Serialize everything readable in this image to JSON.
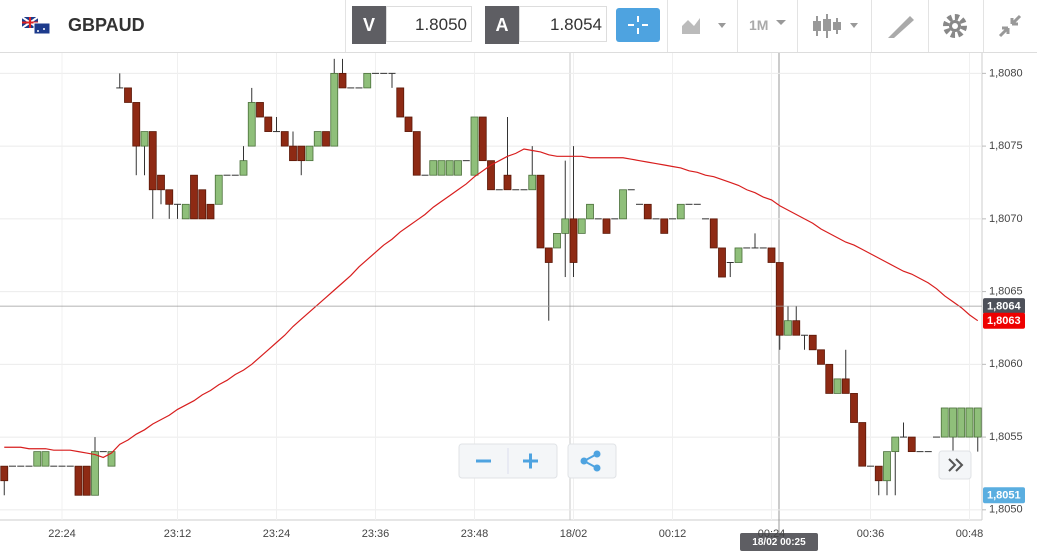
{
  "toolbar": {
    "symbol": "GBPAUD",
    "sell_label": "V",
    "sell_price": "1.8050",
    "buy_label": "A",
    "buy_price": "1.8054",
    "timeframe": "1M"
  },
  "chart_data": {
    "type": "candlestick",
    "categories": [
      null,
      null,
      null,
      null,
      null,
      null,
      null,
      "22:24",
      null,
      null,
      null,
      null,
      null,
      null,
      null,
      null,
      null,
      null,
      null,
      null,
      null,
      "23:12",
      null,
      null,
      null,
      null,
      null,
      null,
      null,
      null,
      null,
      null,
      null,
      "23:24",
      null,
      null,
      null,
      null,
      null,
      null,
      null,
      null,
      null,
      null,
      null,
      "23:36",
      null,
      null,
      null,
      null,
      null,
      null,
      null,
      null,
      null,
      null,
      null,
      "23:48",
      null,
      null,
      null,
      null,
      null,
      null,
      null,
      null,
      null,
      null,
      null,
      "18/02",
      null,
      null,
      null,
      null,
      null,
      null,
      null,
      null,
      null,
      null,
      null,
      "00:12",
      null,
      null,
      null,
      null,
      null,
      null,
      null,
      null,
      null,
      null,
      null,
      "00:24",
      null,
      null,
      null,
      null,
      null,
      null,
      null,
      null,
      null,
      null,
      null,
      "00:36",
      null,
      null,
      null,
      null,
      null,
      null,
      null,
      null,
      null,
      null,
      null,
      "00:48",
      null
    ],
    "open": [
      1.8053,
      1.8053,
      1.8053,
      1.8053,
      1.8053,
      1.8053,
      1.8053,
      1.8053,
      1.8053,
      1.8053,
      1.8053,
      1.8051,
      1.8054,
      1.8053,
      1.8079,
      1.8079,
      1.8078,
      1.8075,
      1.8076,
      1.8073,
      1.8072,
      1.8071,
      1.807,
      1.8073,
      1.8072,
      1.8071,
      1.8071,
      1.8073,
      1.8073,
      1.8073,
      1.8075,
      1.8078,
      1.8077,
      1.8076,
      1.8076,
      1.8075,
      1.8075,
      1.8074,
      1.8075,
      1.8076,
      1.8075,
      1.808,
      1.8079,
      1.8079,
      1.8079,
      1.808,
      1.808,
      1.808,
      1.8079,
      1.8077,
      1.8076,
      1.8073,
      1.8073,
      1.8073,
      1.8073,
      1.8073,
      1.8074,
      1.8073,
      1.8077,
      1.8074,
      1.8072,
      1.8073,
      1.8072,
      1.8072,
      1.8072,
      1.8073,
      1.8068,
      1.8068,
      1.8069,
      1.807,
      1.8069,
      1.807,
      1.807,
      1.807,
      1.807,
      1.807,
      1.8072,
      1.8071,
      1.8071,
      1.807,
      1.807,
      1.807,
      1.807,
      1.8071,
      1.8071,
      1.807,
      1.807,
      1.8068,
      1.8067,
      1.8067,
      1.8068,
      1.8068,
      1.8068,
      1.8068,
      1.8067,
      1.8062,
      1.8063,
      1.8062,
      1.8062,
      1.8061,
      1.806,
      1.8058,
      1.8059,
      1.8058,
      1.8056,
      1.8053,
      1.8053,
      1.8052,
      1.8054,
      1.8055,
      1.8055,
      1.8054,
      1.8054,
      1.8055,
      1.8055,
      1.8055,
      1.8055,
      1.8055,
      1.8055
    ],
    "high": [
      1.8053,
      1.8053,
      1.8053,
      1.8053,
      1.8054,
      1.8054,
      1.8053,
      1.8053,
      1.8053,
      1.8053,
      1.8053,
      1.8055,
      1.8054,
      1.8054,
      1.808,
      1.8079,
      1.8078,
      1.8076,
      1.8076,
      1.8073,
      1.8072,
      1.8071,
      1.8071,
      1.8073,
      1.8072,
      1.8071,
      1.8073,
      1.8073,
      1.8073,
      1.8075,
      1.8079,
      1.8078,
      1.8077,
      1.8077,
      1.8076,
      1.8076,
      1.8075,
      1.8075,
      1.8076,
      1.8076,
      1.8081,
      1.8081,
      1.8079,
      1.8079,
      1.808,
      1.808,
      1.808,
      1.808,
      1.8079,
      1.8077,
      1.8076,
      1.8073,
      1.8074,
      1.8074,
      1.8074,
      1.8074,
      1.8074,
      1.8077,
      1.8077,
      1.8074,
      1.8072,
      1.8077,
      1.8072,
      1.8072,
      1.8075,
      1.8073,
      1.8068,
      1.8069,
      1.8074,
      1.8075,
      1.807,
      1.8071,
      1.807,
      1.807,
      1.807,
      1.8072,
      1.8072,
      1.8071,
      1.8071,
      1.807,
      1.807,
      1.807,
      1.8071,
      1.8071,
      1.8071,
      1.807,
      1.807,
      1.8068,
      1.8067,
      1.8068,
      1.8068,
      1.8069,
      1.8068,
      1.8068,
      1.8067,
      1.8064,
      1.8064,
      1.8062,
      1.8062,
      1.8061,
      1.806,
      1.8059,
      1.8061,
      1.8058,
      1.8056,
      1.8053,
      1.8053,
      1.8054,
      1.8055,
      1.8056,
      1.8055,
      1.8054,
      1.8054,
      1.8055,
      1.8057,
      1.8057,
      1.8057,
      1.8057,
      1.8057
    ],
    "low": [
      1.8051,
      1.8053,
      1.8053,
      1.8053,
      1.8053,
      1.8053,
      1.8053,
      1.8053,
      1.8053,
      1.8051,
      1.8051,
      1.8051,
      1.8054,
      1.8053,
      1.8079,
      1.8078,
      1.8073,
      1.8073,
      1.807,
      1.8071,
      1.807,
      1.807,
      1.807,
      1.807,
      1.807,
      1.807,
      1.8071,
      1.8073,
      1.8073,
      1.8073,
      1.8075,
      1.8077,
      1.8076,
      1.8076,
      1.8075,
      1.8074,
      1.8073,
      1.8074,
      1.8075,
      1.8075,
      1.8075,
      1.8079,
      1.8079,
      1.8079,
      1.8079,
      1.808,
      1.808,
      1.8079,
      1.8077,
      1.8076,
      1.8073,
      1.8073,
      1.8073,
      1.8073,
      1.8073,
      1.8073,
      1.8074,
      1.8073,
      1.8074,
      1.8072,
      1.8072,
      1.8072,
      1.8072,
      1.8072,
      1.8072,
      1.8068,
      1.8063,
      1.8068,
      1.8066,
      1.8066,
      1.8069,
      1.807,
      1.807,
      1.8069,
      1.807,
      1.807,
      1.8072,
      1.8071,
      1.807,
      1.807,
      1.8069,
      1.807,
      1.807,
      1.8071,
      1.8071,
      1.807,
      1.8068,
      1.8066,
      1.8066,
      1.8067,
      1.8068,
      1.8068,
      1.8068,
      1.8067,
      1.8061,
      1.8062,
      1.8062,
      1.8061,
      1.8061,
      1.806,
      1.8058,
      1.8058,
      1.8058,
      1.8056,
      1.8053,
      1.8053,
      1.8051,
      1.8051,
      1.8051,
      1.8055,
      1.8054,
      1.8054,
      1.8054,
      1.8055,
      1.8055,
      1.8054,
      1.8055,
      1.8055,
      1.8054
    ],
    "close": [
      1.8052,
      1.8053,
      1.8053,
      1.8053,
      1.8054,
      1.8054,
      1.8053,
      1.8053,
      1.8053,
      1.8051,
      1.8051,
      1.8054,
      1.8054,
      1.8054,
      1.8079,
      1.8078,
      1.8075,
      1.8076,
      1.8072,
      1.8072,
      1.8071,
      1.8071,
      1.8071,
      1.807,
      1.807,
      1.807,
      1.8073,
      1.8073,
      1.8073,
      1.8074,
      1.8078,
      1.8077,
      1.8076,
      1.8076,
      1.8075,
      1.8074,
      1.8074,
      1.8075,
      1.8076,
      1.8075,
      1.808,
      1.8079,
      1.8079,
      1.8079,
      1.808,
      1.808,
      1.808,
      1.808,
      1.8077,
      1.8076,
      1.8073,
      1.8073,
      1.8074,
      1.8074,
      1.8074,
      1.8074,
      1.8074,
      1.8077,
      1.8074,
      1.8072,
      1.8072,
      1.8072,
      1.8072,
      1.8072,
      1.8073,
      1.8068,
      1.8067,
      1.8069,
      1.807,
      1.8067,
      1.807,
      1.8071,
      1.807,
      1.8069,
      1.807,
      1.8072,
      1.8072,
      1.8071,
      1.807,
      1.807,
      1.8069,
      1.807,
      1.8071,
      1.8071,
      1.8071,
      1.807,
      1.8068,
      1.8066,
      1.8067,
      1.8068,
      1.8068,
      1.8068,
      1.8068,
      1.8067,
      1.8062,
      1.8063,
      1.8062,
      1.8062,
      1.8061,
      1.806,
      1.8058,
      1.8059,
      1.8058,
      1.8056,
      1.8053,
      1.8053,
      1.8052,
      1.8054,
      1.8055,
      1.8055,
      1.8054,
      1.8054,
      1.8054,
      1.8055,
      1.8057,
      1.8057,
      1.8057,
      1.8057,
      1.8057
    ],
    "up_color": "#8fbf7a",
    "down_color": "#8e2a14",
    "moving_average": {
      "color": "#d81e1e",
      "values": [
        1.80543,
        1.80543,
        1.80543,
        1.80542,
        1.80542,
        1.80542,
        1.80541,
        1.80541,
        1.80541,
        1.8054,
        1.80539,
        1.80538,
        1.80536,
        1.80539,
        1.80545,
        1.80548,
        1.80552,
        1.80555,
        1.80559,
        1.80562,
        1.80565,
        1.80569,
        1.80572,
        1.80575,
        1.80579,
        1.80582,
        1.80586,
        1.80589,
        1.80593,
        1.80596,
        1.806,
        1.80605,
        1.8061,
        1.80615,
        1.8062,
        1.80626,
        1.80631,
        1.80636,
        1.80641,
        1.80646,
        1.80651,
        1.80656,
        1.80661,
        1.80667,
        1.80672,
        1.80677,
        1.80682,
        1.80686,
        1.80691,
        1.80695,
        1.80699,
        1.80703,
        1.80708,
        1.80712,
        1.80716,
        1.8072,
        1.80724,
        1.80729,
        1.80733,
        1.80737,
        1.8074,
        1.80743,
        1.80745,
        1.80748,
        1.80747,
        1.80746,
        1.80744,
        1.80743,
        1.80743,
        1.80743,
        1.80743,
        1.80742,
        1.80742,
        1.80742,
        1.80742,
        1.80742,
        1.80741,
        1.8074,
        1.80739,
        1.80738,
        1.80737,
        1.80736,
        1.80735,
        1.80733,
        1.80732,
        1.8073,
        1.80729,
        1.80727,
        1.80725,
        1.80723,
        1.8072,
        1.80718,
        1.80715,
        1.80713,
        1.80709,
        1.80706,
        1.80703,
        1.807,
        1.80697,
        1.80693,
        1.8069,
        1.80687,
        1.80684,
        1.80682,
        1.80679,
        1.80676,
        1.80673,
        1.8067,
        1.80667,
        1.80664,
        1.80662,
        1.80659,
        1.80656,
        1.80652,
        1.80647,
        1.80643,
        1.80639,
        1.80634,
        1.8063
      ]
    },
    "ylim": [
      1.80493,
      1.80814
    ],
    "yticks": [
      {
        "value": 1.805,
        "label": "1,8050"
      },
      {
        "value": 1.8055,
        "label": "1,8055"
      },
      {
        "value": 1.806,
        "label": "1,8060"
      },
      {
        "value": 1.8065,
        "label": "1,8065"
      },
      {
        "value": 1.807,
        "label": "1,8070"
      },
      {
        "value": 1.8075,
        "label": "1,8075"
      },
      {
        "value": 1.808,
        "label": "1,8080"
      }
    ],
    "grid": true,
    "price_labels": [
      {
        "value": 1.8064,
        "label": "1,8064",
        "color": "#4d5059"
      },
      {
        "value": 1.8063,
        "label": "1,8063",
        "color": "#ee0000"
      },
      {
        "value": 1.8051,
        "label": "1,8051",
        "color": "#5aaee0"
      }
    ],
    "crosshair_label": "18/02 00:25"
  }
}
